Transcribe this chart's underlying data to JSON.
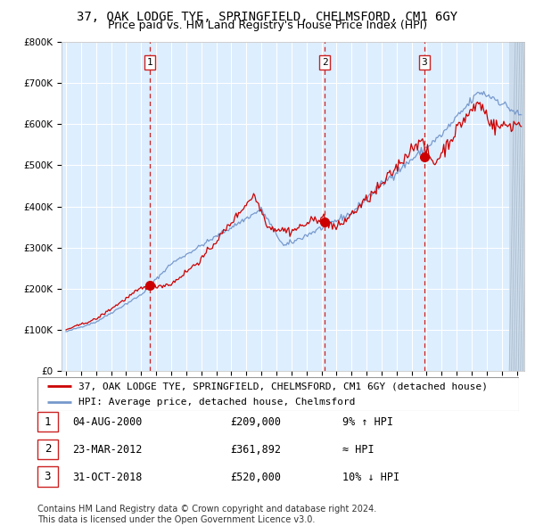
{
  "title": "37, OAK LODGE TYE, SPRINGFIELD, CHELMSFORD, CM1 6GY",
  "subtitle": "Price paid vs. HM Land Registry's House Price Index (HPI)",
  "ylim": [
    0,
    800000
  ],
  "xlim_start": 1994.7,
  "xlim_end": 2025.5,
  "yticks": [
    0,
    100000,
    200000,
    300000,
    400000,
    500000,
    600000,
    700000,
    800000
  ],
  "ytick_labels": [
    "£0",
    "£100K",
    "£200K",
    "£300K",
    "£400K",
    "£500K",
    "£600K",
    "£700K",
    "£800K"
  ],
  "red_line_color": "#cc0000",
  "blue_line_color": "#7799cc",
  "background_color": "#ddeeff",
  "grid_color": "#ffffff",
  "dashed_line_color": "#cc2222",
  "purchase_dates": [
    2000.587,
    2012.226,
    2018.833
  ],
  "purchase_prices": [
    209000,
    361892,
    520000
  ],
  "purchase_labels": [
    "1",
    "2",
    "3"
  ],
  "legend_red_label": "37, OAK LODGE TYE, SPRINGFIELD, CHELMSFORD, CM1 6GY (detached house)",
  "legend_blue_label": "HPI: Average price, detached house, Chelmsford",
  "table_rows": [
    {
      "num": "1",
      "date": "04-AUG-2000",
      "price": "£209,000",
      "hpi": "9% ↑ HPI"
    },
    {
      "num": "2",
      "date": "23-MAR-2012",
      "price": "£361,892",
      "hpi": "≈ HPI"
    },
    {
      "num": "3",
      "date": "31-OCT-2018",
      "price": "£520,000",
      "hpi": "10% ↓ HPI"
    }
  ],
  "footer": "Contains HM Land Registry data © Crown copyright and database right 2024.\nThis data is licensed under the Open Government Licence v3.0.",
  "title_fontsize": 10,
  "subtitle_fontsize": 9,
  "tick_fontsize": 7.5,
  "legend_fontsize": 8,
  "table_fontsize": 8.5,
  "footer_fontsize": 7
}
